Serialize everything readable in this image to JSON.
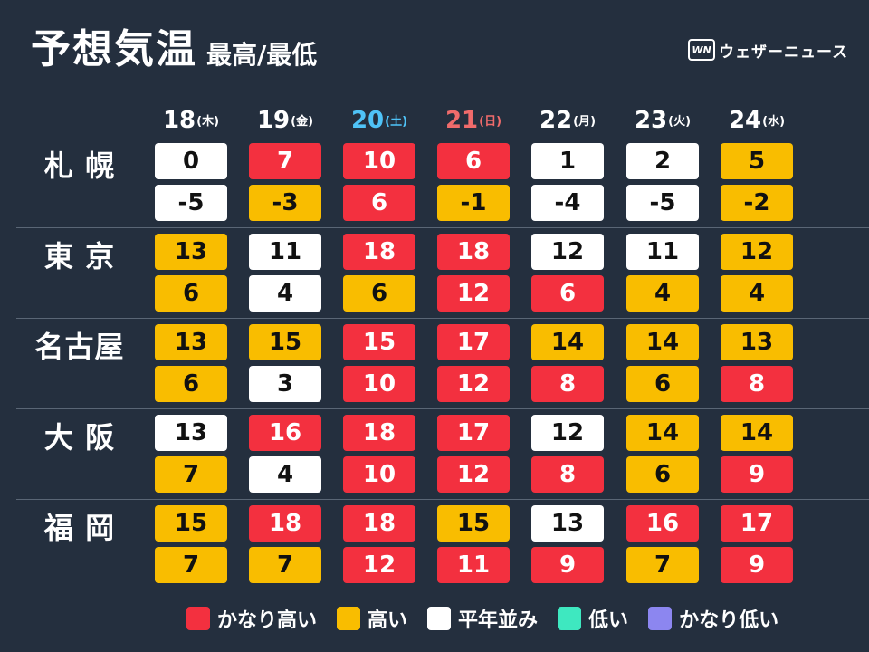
{
  "header": {
    "title": "予想気温",
    "subtitle": "最高/最低",
    "brand_logo": "WN",
    "brand_name": "ウェザーニュース"
  },
  "days": [
    {
      "date": "18",
      "weekday": "(木)",
      "type": "weekday"
    },
    {
      "date": "19",
      "weekday": "(金)",
      "type": "weekday"
    },
    {
      "date": "20",
      "weekday": "(土)",
      "type": "sat"
    },
    {
      "date": "21",
      "weekday": "(日)",
      "type": "sun"
    },
    {
      "date": "22",
      "weekday": "(月)",
      "type": "weekday"
    },
    {
      "date": "23",
      "weekday": "(火)",
      "type": "weekday"
    },
    {
      "date": "24",
      "weekday": "(水)",
      "type": "weekday"
    }
  ],
  "cities": [
    {
      "name": "札 幌",
      "max": [
        {
          "v": "0",
          "c": "normal"
        },
        {
          "v": "7",
          "c": "vhigh"
        },
        {
          "v": "10",
          "c": "vhigh"
        },
        {
          "v": "6",
          "c": "vhigh"
        },
        {
          "v": "1",
          "c": "normal"
        },
        {
          "v": "2",
          "c": "normal"
        },
        {
          "v": "5",
          "c": "high"
        }
      ],
      "min": [
        {
          "v": "-5",
          "c": "normal"
        },
        {
          "v": "-3",
          "c": "high"
        },
        {
          "v": "6",
          "c": "vhigh"
        },
        {
          "v": "-1",
          "c": "high"
        },
        {
          "v": "-4",
          "c": "normal"
        },
        {
          "v": "-5",
          "c": "normal"
        },
        {
          "v": "-2",
          "c": "high"
        }
      ]
    },
    {
      "name": "東 京",
      "max": [
        {
          "v": "13",
          "c": "high"
        },
        {
          "v": "11",
          "c": "normal"
        },
        {
          "v": "18",
          "c": "vhigh"
        },
        {
          "v": "18",
          "c": "vhigh"
        },
        {
          "v": "12",
          "c": "normal"
        },
        {
          "v": "11",
          "c": "normal"
        },
        {
          "v": "12",
          "c": "high"
        }
      ],
      "min": [
        {
          "v": "6",
          "c": "high"
        },
        {
          "v": "4",
          "c": "normal"
        },
        {
          "v": "6",
          "c": "high"
        },
        {
          "v": "12",
          "c": "vhigh"
        },
        {
          "v": "6",
          "c": "vhigh"
        },
        {
          "v": "4",
          "c": "high"
        },
        {
          "v": "4",
          "c": "high"
        }
      ]
    },
    {
      "name": "名古屋",
      "max": [
        {
          "v": "13",
          "c": "high"
        },
        {
          "v": "15",
          "c": "high"
        },
        {
          "v": "15",
          "c": "vhigh"
        },
        {
          "v": "17",
          "c": "vhigh"
        },
        {
          "v": "14",
          "c": "high"
        },
        {
          "v": "14",
          "c": "high"
        },
        {
          "v": "13",
          "c": "high"
        }
      ],
      "min": [
        {
          "v": "6",
          "c": "high"
        },
        {
          "v": "3",
          "c": "normal"
        },
        {
          "v": "10",
          "c": "vhigh"
        },
        {
          "v": "12",
          "c": "vhigh"
        },
        {
          "v": "8",
          "c": "vhigh"
        },
        {
          "v": "6",
          "c": "high"
        },
        {
          "v": "8",
          "c": "vhigh"
        }
      ]
    },
    {
      "name": "大 阪",
      "max": [
        {
          "v": "13",
          "c": "normal"
        },
        {
          "v": "16",
          "c": "vhigh"
        },
        {
          "v": "18",
          "c": "vhigh"
        },
        {
          "v": "17",
          "c": "vhigh"
        },
        {
          "v": "12",
          "c": "normal"
        },
        {
          "v": "14",
          "c": "high"
        },
        {
          "v": "14",
          "c": "high"
        }
      ],
      "min": [
        {
          "v": "7",
          "c": "high"
        },
        {
          "v": "4",
          "c": "normal"
        },
        {
          "v": "10",
          "c": "vhigh"
        },
        {
          "v": "12",
          "c": "vhigh"
        },
        {
          "v": "8",
          "c": "vhigh"
        },
        {
          "v": "6",
          "c": "high"
        },
        {
          "v": "9",
          "c": "vhigh"
        }
      ]
    },
    {
      "name": "福 岡",
      "max": [
        {
          "v": "15",
          "c": "high"
        },
        {
          "v": "18",
          "c": "vhigh"
        },
        {
          "v": "18",
          "c": "vhigh"
        },
        {
          "v": "15",
          "c": "high"
        },
        {
          "v": "13",
          "c": "normal"
        },
        {
          "v": "16",
          "c": "vhigh"
        },
        {
          "v": "17",
          "c": "vhigh"
        }
      ],
      "min": [
        {
          "v": "7",
          "c": "high"
        },
        {
          "v": "7",
          "c": "high"
        },
        {
          "v": "12",
          "c": "vhigh"
        },
        {
          "v": "11",
          "c": "vhigh"
        },
        {
          "v": "9",
          "c": "vhigh"
        },
        {
          "v": "7",
          "c": "high"
        },
        {
          "v": "9",
          "c": "vhigh"
        }
      ]
    }
  ],
  "legend": [
    {
      "key": "vhigh",
      "label": "かなり高い",
      "color": "#f3303f"
    },
    {
      "key": "high",
      "label": "高い",
      "color": "#f9bd00"
    },
    {
      "key": "normal",
      "label": "平年並み",
      "color": "#ffffff"
    },
    {
      "key": "low",
      "label": "低い",
      "color": "#3ee8c0"
    },
    {
      "key": "vlow",
      "label": "かなり低い",
      "color": "#8c86f0"
    }
  ]
}
